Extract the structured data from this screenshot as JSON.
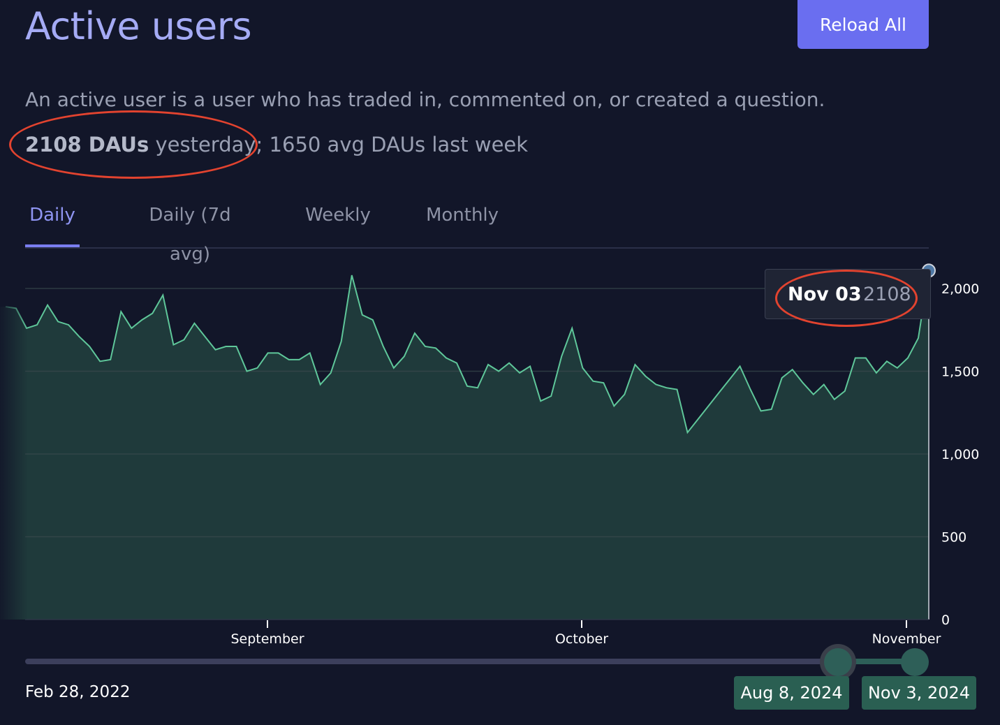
{
  "header": {
    "title": "Active users",
    "reload_label": "Reload All",
    "description": "An active user is a user who has traded in, commented on, or created a question.",
    "dau_bold": "2108 DAUs",
    "dau_rest": " yesterday; 1650 avg DAUs last week"
  },
  "tabs": [
    {
      "label": "Daily",
      "active": true
    },
    {
      "label": "Daily (7d avg)",
      "active": false
    },
    {
      "label": "Weekly",
      "active": false
    },
    {
      "label": "Monthly",
      "active": false
    }
  ],
  "tooltip": {
    "date": "Nov 03",
    "value": "2108"
  },
  "range": {
    "min_date": "Feb 28, 2022",
    "start_date": "Aug 8, 2024",
    "end_date": "Nov 3, 2024"
  },
  "colors": {
    "accent": "#6a6ef0",
    "line": "#5fc79a",
    "area": "#1f3a3b",
    "annotation": "#e2432f"
  },
  "chart_data": {
    "type": "area",
    "x_label_ticks": [
      "September",
      "October",
      "November"
    ],
    "y_ticks": [
      "0",
      "500",
      "1,000",
      "1,500",
      "2,000"
    ],
    "ylim": [
      0,
      2200
    ],
    "grid": true,
    "y_axis_position": "right",
    "series": [
      {
        "values": [
          1890,
          1880,
          1760,
          1780,
          1900,
          1800,
          1780,
          1710,
          1650,
          1560,
          1570,
          1860,
          1760,
          1810,
          1850,
          1960,
          1660,
          1690,
          1790,
          1710,
          1630,
          1650,
          1650,
          1500,
          1520,
          1610,
          1610,
          1570,
          1570,
          1610,
          1420,
          1490,
          1680,
          2080,
          1840,
          1810,
          1650,
          1520,
          1590,
          1730,
          1650,
          1640,
          1580,
          1550,
          1410,
          1400,
          1540,
          1500,
          1550,
          1490,
          1530,
          1320,
          1350,
          1590,
          1760,
          1520,
          1440,
          1430,
          1290,
          1360,
          1540,
          1470,
          1420,
          1400,
          1390,
          1130,
          1210,
          1290,
          1370,
          1450,
          1530,
          1390,
          1260,
          1270,
          1460,
          1510,
          1430,
          1360,
          1420,
          1330,
          1380,
          1580,
          1580,
          1490,
          1560,
          1520,
          1580,
          1700,
          2108
        ]
      }
    ]
  }
}
